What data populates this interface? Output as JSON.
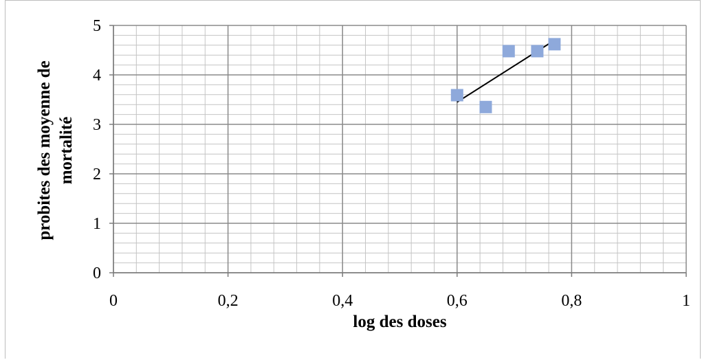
{
  "chart_data": {
    "type": "scatter",
    "title": "",
    "xlabel": "log des doses",
    "ylabel_lines": [
      "probites des moyenne de",
      "mortalité"
    ],
    "xlim": [
      0,
      1
    ],
    "ylim": [
      0,
      5
    ],
    "x_ticks": [
      0,
      0.2,
      0.4,
      0.6,
      0.8,
      1
    ],
    "x_tick_labels": [
      "0",
      "0,2",
      "0,4",
      "0,6",
      "0,8",
      "1"
    ],
    "y_ticks": [
      0,
      1,
      2,
      3,
      4,
      5
    ],
    "y_tick_labels": [
      "0",
      "1",
      "2",
      "3",
      "4",
      "5"
    ],
    "minor_grid_x": 0.04,
    "minor_grid_y": 0.2,
    "grid": true,
    "legend": "none",
    "series": [
      {
        "marker": "square",
        "color": "#8EA9DB",
        "points": [
          {
            "x": 0.6,
            "y": 3.59
          },
          {
            "x": 0.65,
            "y": 3.35
          },
          {
            "x": 0.69,
            "y": 4.48
          },
          {
            "x": 0.74,
            "y": 4.48
          },
          {
            "x": 0.77,
            "y": 4.62
          }
        ]
      }
    ],
    "trendline": {
      "color": "#000000",
      "from": {
        "x": 0.6,
        "y": 3.45
      },
      "to": {
        "x": 0.77,
        "y": 4.7
      }
    }
  }
}
